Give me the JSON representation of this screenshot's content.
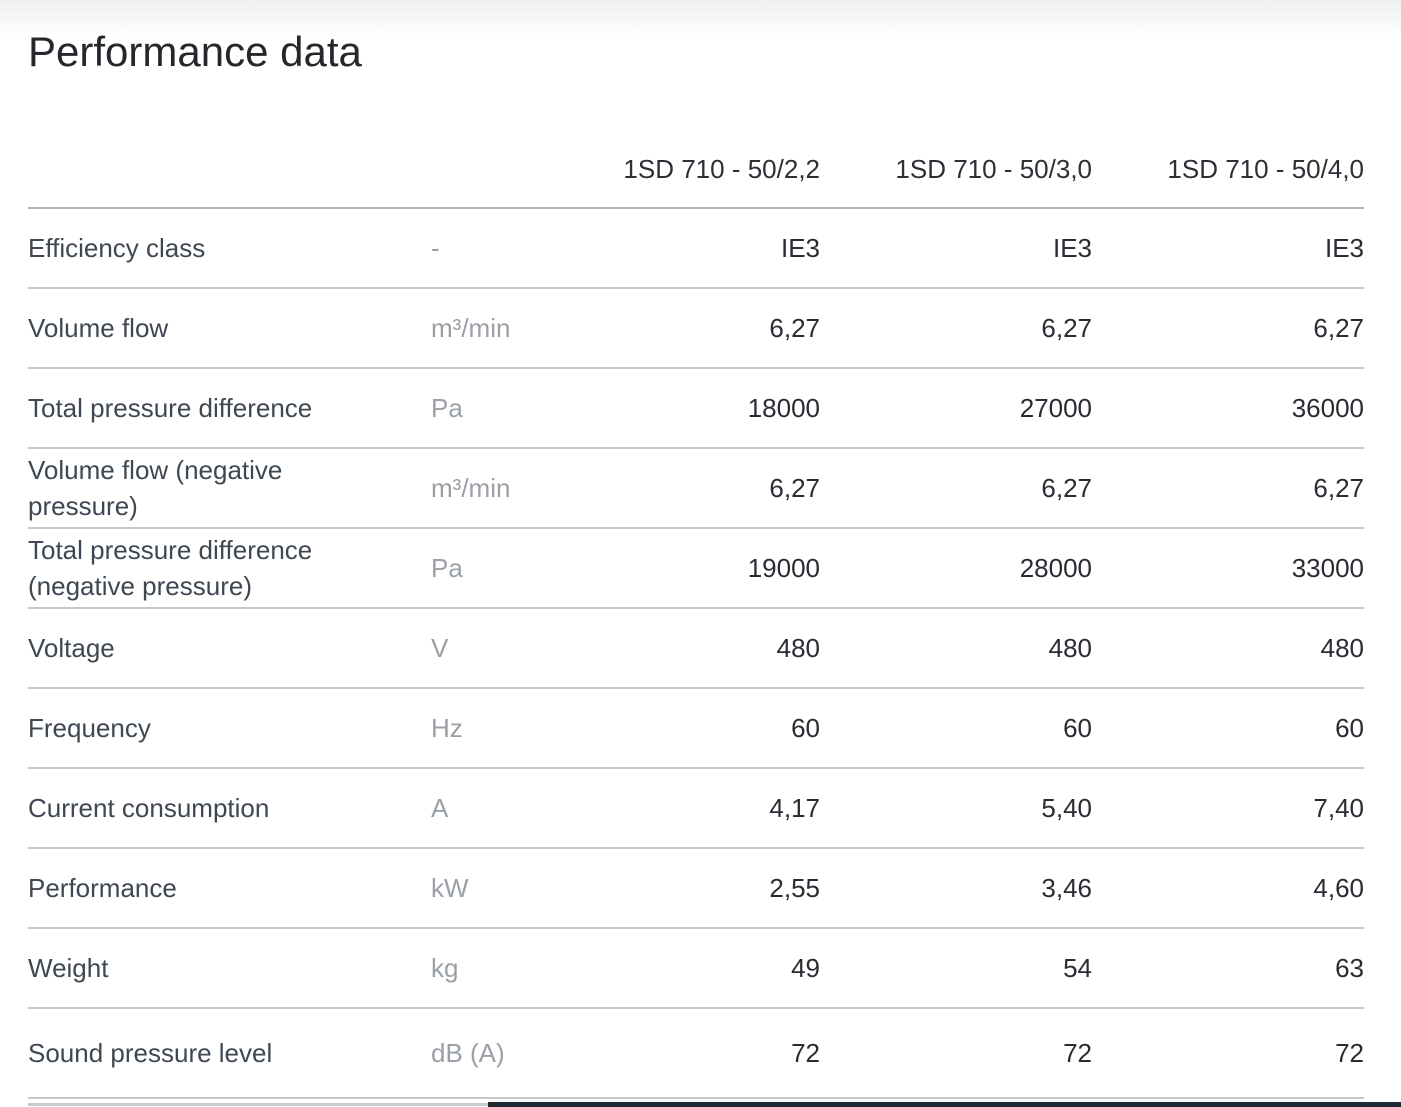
{
  "section": {
    "title": "Performance data"
  },
  "table": {
    "columns": [
      "1SD 710 - 50/2,2",
      "1SD 710 - 50/3,0",
      "1SD 710 - 50/4,0"
    ],
    "rows": [
      {
        "label": "Efficiency class",
        "unit": "-",
        "values": [
          "IE3",
          "IE3",
          "IE3"
        ]
      },
      {
        "label": "Volume flow",
        "unit": "m³/min",
        "values": [
          "6,27",
          "6,27",
          "6,27"
        ]
      },
      {
        "label": "Total pressure difference",
        "unit": "Pa",
        "values": [
          "18000",
          "27000",
          "36000"
        ]
      },
      {
        "label": "Volume flow (negative\npressure)",
        "unit": "m³/min",
        "values": [
          "6,27",
          "6,27",
          "6,27"
        ]
      },
      {
        "label": "Total pressure difference\n(negative pressure)",
        "unit": "Pa",
        "values": [
          "19000",
          "28000",
          "33000"
        ]
      },
      {
        "label": "Voltage",
        "unit": "V",
        "values": [
          "480",
          "480",
          "480"
        ]
      },
      {
        "label": "Frequency",
        "unit": "Hz",
        "values": [
          "60",
          "60",
          "60"
        ]
      },
      {
        "label": "Current consumption",
        "unit": "A",
        "values": [
          "4,17",
          "5,40",
          "7,40"
        ]
      },
      {
        "label": "Performance",
        "unit": "kW",
        "values": [
          "2,55",
          "3,46",
          "4,60"
        ]
      },
      {
        "label": "Weight",
        "unit": "kg",
        "values": [
          "49",
          "54",
          "63"
        ]
      },
      {
        "label": "Sound pressure level",
        "unit": "dB (A)",
        "values": [
          "72",
          "72",
          "72"
        ]
      }
    ]
  },
  "colors": {
    "title_text": "#24282c",
    "label_text": "#3f4852",
    "unit_text": "#9aa0a6",
    "value_text": "#282d33",
    "header_divider": "#b4b4b4",
    "row_divider": "#c8c8c8",
    "top_gradient_start": "#efefef",
    "scrollbar_track": "#cbcbcb",
    "scrollbar_thumb": "#1e2933"
  }
}
